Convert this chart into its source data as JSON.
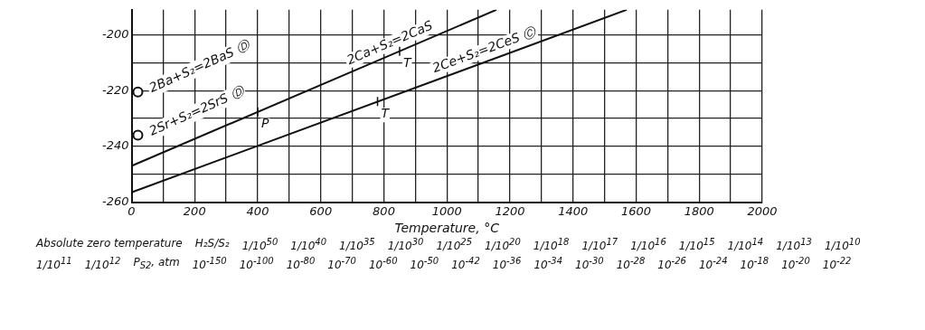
{
  "chart_data": {
    "type": "line",
    "xlabel": "Temperature, °C",
    "xlim": [
      0,
      2000
    ],
    "xticks": [
      0,
      {
        "value": 100,
        "label": null
      },
      200,
      {
        "value": 300,
        "label": null
      },
      400,
      {
        "value": 500,
        "label": null
      },
      600,
      {
        "value": 700,
        "label": null
      },
      800,
      {
        "value": 900,
        "label": null
      },
      1000,
      {
        "value": 1100,
        "label": null
      },
      1200,
      {
        "value": 1300,
        "label": null
      },
      1400,
      {
        "value": 1500,
        "label": null
      },
      1600,
      {
        "value": 1700,
        "label": null
      },
      1800,
      {
        "value": 1900,
        "label": null
      },
      2000
    ],
    "ylim": [
      -260,
      -191
    ],
    "yticks": [
      -260,
      {
        "value": -250,
        "label": null
      },
      -240,
      {
        "value": -230,
        "label": null
      },
      -220,
      {
        "value": -210,
        "label": null
      },
      -200
    ],
    "grid": true,
    "series": [
      {
        "name": "2Ca+S₂=2CaS",
        "color": "#111111",
        "marker": "none",
        "x": [
          0,
          1157
        ],
        "values": [
          -247,
          -191
        ]
      },
      {
        "name": "2Ce+S₂=2CeS Ⓒ",
        "color": "#111111",
        "marker": "none",
        "x": [
          0,
          1570
        ],
        "values": [
          -256.5,
          -191
        ]
      },
      {
        "name": "2Ba+S₂=2BaS Ⓓ",
        "type": "scatter",
        "color": "#111111",
        "marker": "circle",
        "x": [
          20
        ],
        "values": [
          -220.5
        ]
      },
      {
        "name": "2Sr+S₂=2SrS Ⓓ",
        "type": "scatter",
        "color": "#111111",
        "marker": "circle",
        "x": [
          20
        ],
        "values": [
          -236
        ]
      }
    ],
    "annotations": [
      {
        "text": "P",
        "x": 400,
        "y": -227.6
      },
      {
        "text": "T",
        "x": 850,
        "y": -205.9
      },
      {
        "text": "T",
        "x": 780,
        "y": -223.9
      },
      "Absolute zero temperature",
      "H₂S/S₂",
      "1/10$^{50}$",
      "1/10$^{40}$",
      "1/10$^{35}$",
      "1/10$^{30}$",
      "1/10$^{25}$",
      "1/10$^{20}$",
      "1/10$^{18}$",
      "1/10$^{17}$",
      "1/10$^{16}$",
      "1/10$^{15}$",
      "1/10$^{14}$",
      "1/10$^{13}$",
      "1/10$^{10}$",
      "1/10$^{11}$",
      "1/10$^{12}$",
      "P$_{S2}$, atm",
      "10$^{-150}$",
      "10$^{-100}$",
      "10$^{-80}$",
      "10$^{-70}$",
      "10$^{-60}$",
      "10$^{-50}$",
      "10$^{-42}$",
      "10$^{-36}$",
      "10$^{-34}$",
      "10$^{-30}$",
      "10$^{-28}$",
      "10$^{-26}$",
      "10$^{-24}$",
      "10$^{-18}$",
      "10$^{-20}$",
      "10$^{-22}$"
    ]
  }
}
